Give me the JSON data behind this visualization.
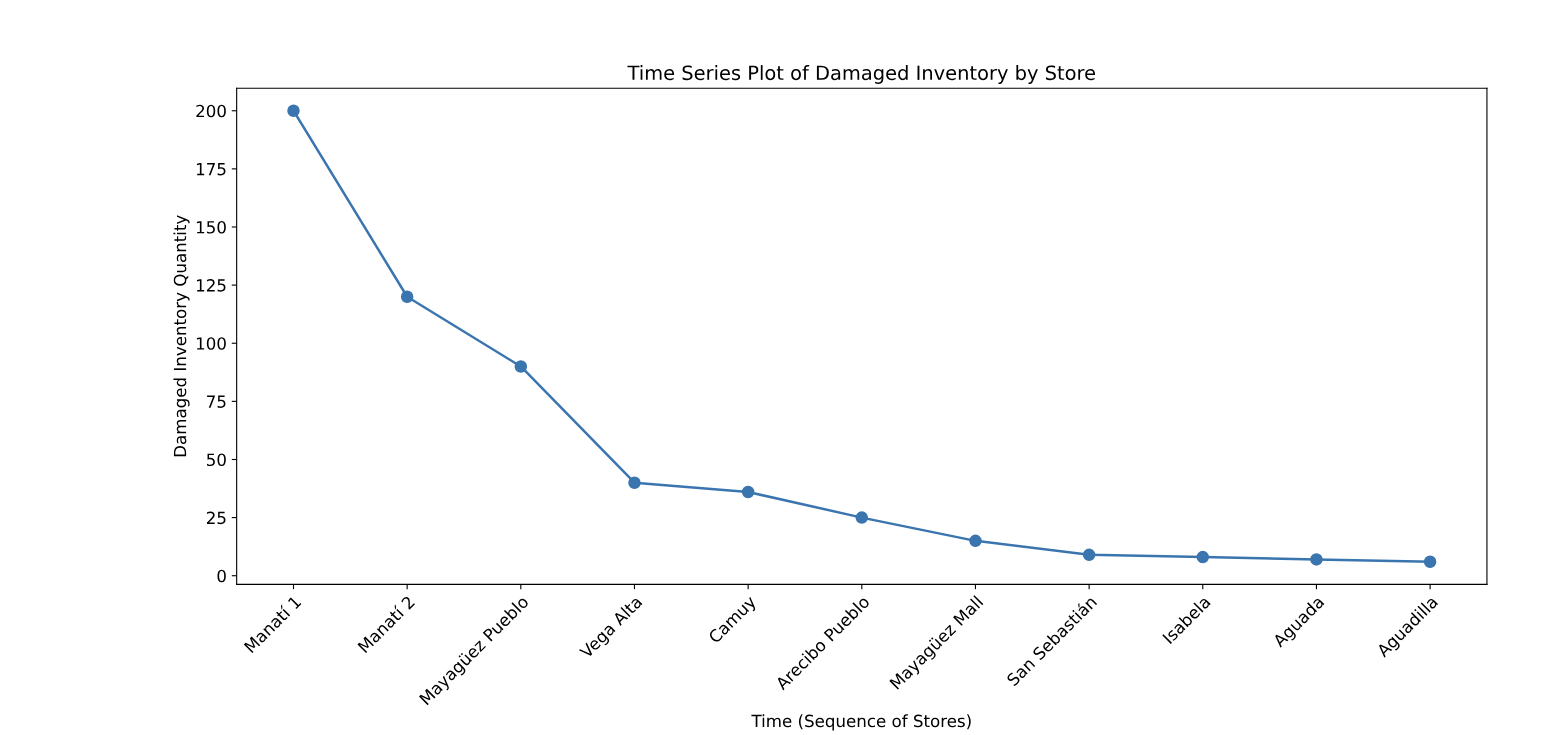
{
  "chart_data": {
    "type": "line",
    "title": "Time Series Plot of Damaged Inventory by Store",
    "xlabel": "Time (Sequence of Stores)",
    "ylabel": "Damaged Inventory Quantity",
    "categories": [
      "Manatí 1",
      "Manatí 2",
      "Mayagüez Pueblo",
      "Vega Alta",
      "Camuy",
      "Arecibo Pueblo",
      "Mayagüez Mall",
      "San Sebastián",
      "Isabela",
      "Aguada",
      "Aguadilla"
    ],
    "series": [
      {
        "color": "#3b75af",
        "values": [
          200,
          120,
          90,
          40,
          36,
          25,
          15,
          9,
          8,
          7,
          6
        ]
      }
    ],
    "ylim": [
      -3.7,
      209.7
    ],
    "yticks": [
      0,
      25,
      50,
      75,
      100,
      125,
      150,
      175,
      200
    ],
    "marker": "circle",
    "line_style": "solid",
    "grid": false
  }
}
